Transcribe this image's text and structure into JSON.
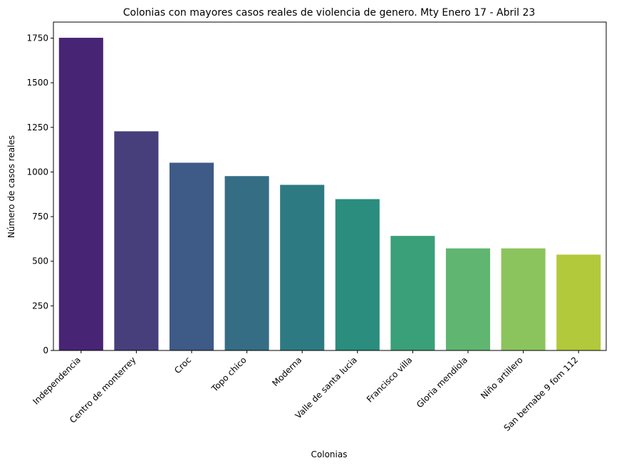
{
  "chart_data": {
    "type": "bar",
    "title": "Colonias con mayores casos reales de violencia de genero. Mty Enero 17 - Abril 23",
    "xlabel": "Colonias",
    "ylabel": "Número de casos reales",
    "categories": [
      "Independencia",
      "Centro de monterrey",
      "Croc",
      "Topo chico",
      "Moderna",
      "Valle de santa lucia",
      "Francisco villa",
      "Gloria mendiola",
      "Niño artillero",
      "San bernabe 9 fom 112"
    ],
    "values": [
      1752,
      1228,
      1052,
      977,
      928,
      848,
      642,
      572,
      572,
      537
    ],
    "ylim": [
      0,
      1840
    ],
    "yticks": [
      0,
      250,
      500,
      750,
      1000,
      1250,
      1500,
      1750
    ],
    "colors": [
      "#482475",
      "#463f7c",
      "#3e5a86",
      "#356d84",
      "#2e7a82",
      "#2a8d7d",
      "#3aa079",
      "#60b670",
      "#8bc45c",
      "#b1c93b"
    ],
    "grid": false,
    "legend": "none"
  }
}
